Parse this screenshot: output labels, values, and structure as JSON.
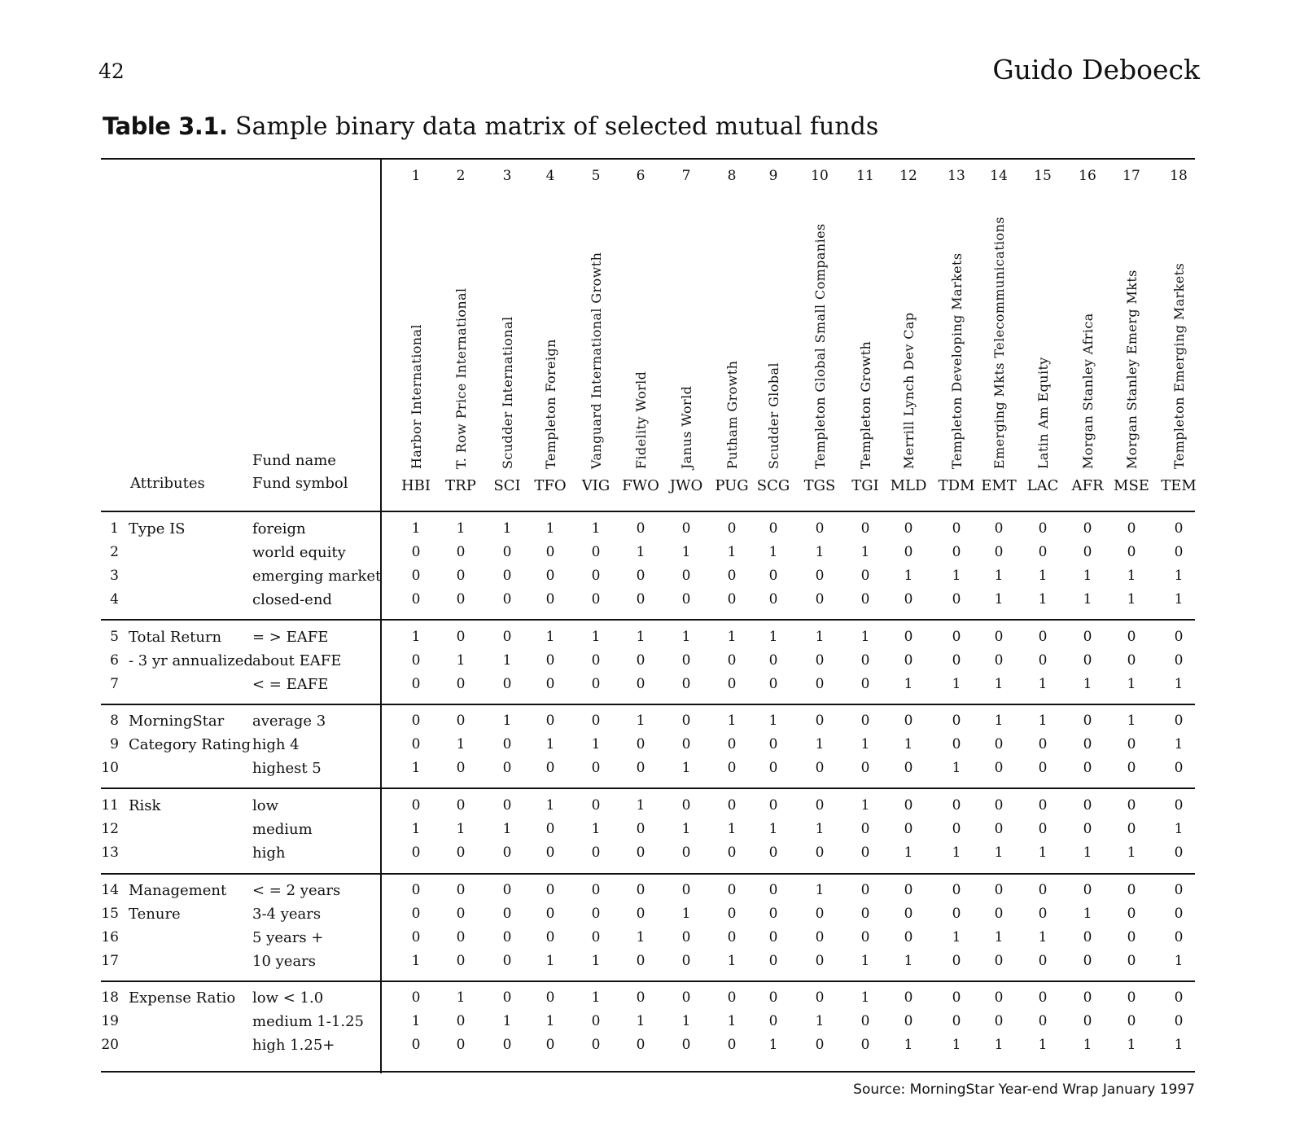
{
  "header": {
    "page_number": "42",
    "author": "Guido Deboeck"
  },
  "caption": {
    "label": "Table 3.1.",
    "text": "Sample binary data matrix of selected mutual funds"
  },
  "table": {
    "head": {
      "attributes": "Attributes",
      "fund_name": "Fund name",
      "fund_symbol": "Fund symbol"
    },
    "columns": [
      {
        "num": "1",
        "name": "Harbor International",
        "symbol": "HBI"
      },
      {
        "num": "2",
        "name": "T. Row Price International",
        "symbol": "TRP"
      },
      {
        "num": "3",
        "name": "Scudder International",
        "symbol": "SCI"
      },
      {
        "num": "4",
        "name": "Templeton Foreign",
        "symbol": "TFO"
      },
      {
        "num": "5",
        "name": "Vanguard International Growth",
        "symbol": "VIG"
      },
      {
        "num": "6",
        "name": "Fidelity World",
        "symbol": "FWO"
      },
      {
        "num": "7",
        "name": "Janus World",
        "symbol": "JWO"
      },
      {
        "num": "8",
        "name": "Putham Growth",
        "symbol": "PUG"
      },
      {
        "num": "9",
        "name": "Scudder Global",
        "symbol": "SCG"
      },
      {
        "num": "10",
        "name": "Templeton Global Small Companies",
        "symbol": "TGS"
      },
      {
        "num": "11",
        "name": "Templeton Growth",
        "symbol": "TGI"
      },
      {
        "num": "12",
        "name": "Merrill Lynch Dev Cap",
        "symbol": "MLD"
      },
      {
        "num": "13",
        "name": "Templeton Developing Markets",
        "symbol": "TDM"
      },
      {
        "num": "14",
        "name": "Emerging Mkts Telecommunications",
        "symbol": "EMT"
      },
      {
        "num": "15",
        "name": "Latin Am Equity",
        "symbol": "LAC"
      },
      {
        "num": "16",
        "name": "Morgan Stanley Africa",
        "symbol": "AFR"
      },
      {
        "num": "17",
        "name": "Morgan Stanley Emerg Mkts",
        "symbol": "MSE"
      },
      {
        "num": "18",
        "name": "Templeton Emerging Markets",
        "symbol": "TEM"
      }
    ],
    "rows": [
      {
        "num": "1",
        "attribute": "Type IS",
        "category": "foreign",
        "values": [
          "1",
          "1",
          "1",
          "1",
          "1",
          "0",
          "0",
          "0",
          "0",
          "0",
          "0",
          "0",
          "0",
          "0",
          "0",
          "0",
          "0",
          "0"
        ]
      },
      {
        "num": "2",
        "attribute": "",
        "category": "world equity",
        "values": [
          "0",
          "0",
          "0",
          "0",
          "0",
          "1",
          "1",
          "1",
          "1",
          "1",
          "1",
          "0",
          "0",
          "0",
          "0",
          "0",
          "0",
          "0"
        ]
      },
      {
        "num": "3",
        "attribute": "",
        "category": "emerging market",
        "values": [
          "0",
          "0",
          "0",
          "0",
          "0",
          "0",
          "0",
          "0",
          "0",
          "0",
          "0",
          "1",
          "1",
          "1",
          "1",
          "1",
          "1",
          "1"
        ]
      },
      {
        "num": "4",
        "attribute": "",
        "category": "closed-end",
        "values": [
          "0",
          "0",
          "0",
          "0",
          "0",
          "0",
          "0",
          "0",
          "0",
          "0",
          "0",
          "0",
          "0",
          "1",
          "1",
          "1",
          "1",
          "1"
        ]
      },
      {
        "num": "5",
        "attribute": "Total Return",
        "category": "= > EAFE",
        "values": [
          "1",
          "0",
          "0",
          "1",
          "1",
          "1",
          "1",
          "1",
          "1",
          "1",
          "1",
          "0",
          "0",
          "0",
          "0",
          "0",
          "0",
          "0"
        ]
      },
      {
        "num": "6",
        "attribute": "- 3 yr annualized",
        "category": "about EAFE",
        "values": [
          "0",
          "1",
          "1",
          "0",
          "0",
          "0",
          "0",
          "0",
          "0",
          "0",
          "0",
          "0",
          "0",
          "0",
          "0",
          "0",
          "0",
          "0"
        ]
      },
      {
        "num": "7",
        "attribute": "",
        "category": "< = EAFE",
        "values": [
          "0",
          "0",
          "0",
          "0",
          "0",
          "0",
          "0",
          "0",
          "0",
          "0",
          "0",
          "1",
          "1",
          "1",
          "1",
          "1",
          "1",
          "1"
        ]
      },
      {
        "num": "8",
        "attribute": "MorningStar",
        "category": "average 3",
        "values": [
          "0",
          "0",
          "1",
          "0",
          "0",
          "1",
          "0",
          "1",
          "1",
          "0",
          "0",
          "0",
          "0",
          "1",
          "1",
          "0",
          "1",
          "0"
        ]
      },
      {
        "num": "9",
        "attribute": "Category Rating",
        "category": "high 4",
        "values": [
          "0",
          "1",
          "0",
          "1",
          "1",
          "0",
          "0",
          "0",
          "0",
          "1",
          "1",
          "1",
          "0",
          "0",
          "0",
          "0",
          "0",
          "1"
        ]
      },
      {
        "num": "10",
        "attribute": "",
        "category": "highest 5",
        "values": [
          "1",
          "0",
          "0",
          "0",
          "0",
          "0",
          "1",
          "0",
          "0",
          "0",
          "0",
          "0",
          "1",
          "0",
          "0",
          "0",
          "0",
          "0"
        ]
      },
      {
        "num": "11",
        "attribute": "Risk",
        "category": "low",
        "values": [
          "0",
          "0",
          "0",
          "1",
          "0",
          "1",
          "0",
          "0",
          "0",
          "0",
          "1",
          "0",
          "0",
          "0",
          "0",
          "0",
          "0",
          "0"
        ]
      },
      {
        "num": "12",
        "attribute": "",
        "category": "medium",
        "values": [
          "1",
          "1",
          "1",
          "0",
          "1",
          "0",
          "1",
          "1",
          "1",
          "1",
          "0",
          "0",
          "0",
          "0",
          "0",
          "0",
          "0",
          "1"
        ]
      },
      {
        "num": "13",
        "attribute": "",
        "category": "high",
        "values": [
          "0",
          "0",
          "0",
          "0",
          "0",
          "0",
          "0",
          "0",
          "0",
          "0",
          "0",
          "1",
          "1",
          "1",
          "1",
          "1",
          "1",
          "0"
        ]
      },
      {
        "num": "14",
        "attribute": "Management",
        "category": "< = 2 years",
        "values": [
          "0",
          "0",
          "0",
          "0",
          "0",
          "0",
          "0",
          "0",
          "0",
          "1",
          "0",
          "0",
          "0",
          "0",
          "0",
          "0",
          "0",
          "0"
        ]
      },
      {
        "num": "15",
        "attribute": "Tenure",
        "category": "3-4 years",
        "values": [
          "0",
          "0",
          "0",
          "0",
          "0",
          "0",
          "1",
          "0",
          "0",
          "0",
          "0",
          "0",
          "0",
          "0",
          "0",
          "1",
          "0",
          "0"
        ]
      },
      {
        "num": "16",
        "attribute": "",
        "category": "5 years +",
        "values": [
          "0",
          "0",
          "0",
          "0",
          "0",
          "1",
          "0",
          "0",
          "0",
          "0",
          "0",
          "0",
          "1",
          "1",
          "1",
          "0",
          "0",
          "0"
        ]
      },
      {
        "num": "17",
        "attribute": "",
        "category": "10 years",
        "values": [
          "1",
          "0",
          "0",
          "1",
          "1",
          "0",
          "0",
          "1",
          "0",
          "0",
          "1",
          "1",
          "0",
          "0",
          "0",
          "0",
          "0",
          "1"
        ]
      },
      {
        "num": "18",
        "attribute": "Expense Ratio",
        "category": "low < 1.0",
        "values": [
          "0",
          "1",
          "0",
          "0",
          "1",
          "0",
          "0",
          "0",
          "0",
          "0",
          "1",
          "0",
          "0",
          "0",
          "0",
          "0",
          "0",
          "0"
        ]
      },
      {
        "num": "19",
        "attribute": "",
        "category": "medium 1-1.25",
        "values": [
          "1",
          "0",
          "1",
          "1",
          "0",
          "1",
          "1",
          "1",
          "0",
          "1",
          "0",
          "0",
          "0",
          "0",
          "0",
          "0",
          "0",
          "0"
        ]
      },
      {
        "num": "20",
        "attribute": "",
        "category": "high 1.25+",
        "values": [
          "0",
          "0",
          "0",
          "0",
          "0",
          "0",
          "0",
          "0",
          "1",
          "0",
          "0",
          "1",
          "1",
          "1",
          "1",
          "1",
          "1",
          "1"
        ]
      }
    ]
  },
  "source": "Source: MorningStar Year-end Wrap January 1997"
}
